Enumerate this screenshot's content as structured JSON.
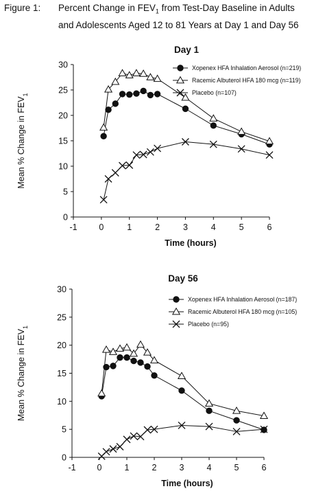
{
  "figure": {
    "label": "Figure 1:",
    "title_line1": "Percent Change in FEV",
    "title_sub": "1",
    "title_line1_tail": " from Test-Day Baseline in Adults",
    "title_line2": "and Adolescents Aged 12 to 81 Years at Day 1 and Day 56"
  },
  "chart_data": [
    {
      "type": "line",
      "title": "Day 1",
      "xlabel": "Time (hours)",
      "ylabel": "Mean % Change in FEV",
      "ylabel_sub": "1",
      "xlim": [
        -1,
        6
      ],
      "ylim": [
        0,
        30
      ],
      "xticks": [
        "-1",
        "0",
        "1",
        "2",
        "3",
        "4",
        "5",
        "6"
      ],
      "yticks": [
        "0",
        "5",
        "10",
        "15",
        "20",
        "25",
        "30"
      ],
      "legend_position": "top-right",
      "series": [
        {
          "name": "Xopenex HFA Inhalation Aerosol (n=219)",
          "marker": "filled-circle",
          "x": [
            0.08,
            0.25,
            0.5,
            0.75,
            1.0,
            1.25,
            1.5,
            1.75,
            2.0,
            3.0,
            4.0,
            5.0,
            6.0
          ],
          "y": [
            15.9,
            21.1,
            22.3,
            24.2,
            24.1,
            24.3,
            24.8,
            24.0,
            24.2,
            21.3,
            18.0,
            16.3,
            14.3
          ]
        },
        {
          "name": "Racemic Albuterol HFA 180 mcg (n=119)",
          "marker": "open-triangle",
          "x": [
            0.08,
            0.25,
            0.5,
            0.75,
            1.0,
            1.25,
            1.5,
            1.75,
            2.0,
            3.0,
            4.0,
            5.0,
            6.0
          ],
          "y": [
            17.6,
            25.1,
            26.6,
            28.3,
            27.9,
            28.3,
            28.2,
            27.5,
            27.2,
            23.5,
            19.4,
            16.8,
            14.9
          ]
        },
        {
          "name": "Placebo (n=107)",
          "marker": "x",
          "x": [
            0.08,
            0.25,
            0.5,
            0.75,
            1.0,
            1.25,
            1.5,
            1.75,
            2.0,
            3.0,
            4.0,
            5.0,
            6.0
          ],
          "y": [
            3.4,
            7.5,
            8.7,
            10.1,
            10.2,
            12.2,
            12.3,
            12.8,
            13.5,
            14.8,
            14.3,
            13.4,
            12.2
          ]
        }
      ]
    },
    {
      "type": "line",
      "title": "Day 56",
      "xlabel": "Time (hours)",
      "ylabel": "Mean % Change in FEV",
      "ylabel_sub": "1",
      "xlim": [
        -1,
        6
      ],
      "ylim": [
        0,
        30
      ],
      "xticks": [
        "-1",
        "0",
        "1",
        "2",
        "3",
        "4",
        "5",
        "6"
      ],
      "yticks": [
        "0",
        "5",
        "10",
        "15",
        "20",
        "25",
        "30"
      ],
      "legend_position": "top-right",
      "series": [
        {
          "name": "Xopenex HFA Inhalation Aerosol (n=187)",
          "marker": "filled-circle",
          "x": [
            0.08,
            0.25,
            0.5,
            0.75,
            1.0,
            1.25,
            1.5,
            1.75,
            2.0,
            3.0,
            4.0,
            5.0,
            6.0
          ],
          "y": [
            10.9,
            16.1,
            16.3,
            17.8,
            17.8,
            17.2,
            16.9,
            16.2,
            14.6,
            11.9,
            8.3,
            6.6,
            4.9
          ]
        },
        {
          "name": "Racemic Albuterol HFA 180 mcg (n=105)",
          "marker": "open-triangle",
          "x": [
            0.08,
            0.25,
            0.5,
            0.75,
            1.0,
            1.25,
            1.5,
            1.75,
            2.0,
            3.0,
            4.0,
            5.0,
            6.0
          ],
          "y": [
            11.4,
            19.2,
            18.8,
            19.4,
            19.6,
            18.5,
            20.1,
            18.7,
            17.3,
            14.5,
            9.6,
            8.3,
            7.4
          ]
        },
        {
          "name": "Placebo (n=95)",
          "marker": "x",
          "x": [
            0.08,
            0.25,
            0.5,
            0.75,
            1.0,
            1.25,
            1.5,
            1.75,
            2.0,
            3.0,
            4.0,
            5.0,
            6.0
          ],
          "y": [
            0.2,
            1.0,
            1.5,
            1.9,
            3.2,
            3.8,
            3.7,
            4.9,
            5.0,
            5.7,
            5.5,
            4.6,
            5.0
          ]
        }
      ]
    }
  ]
}
